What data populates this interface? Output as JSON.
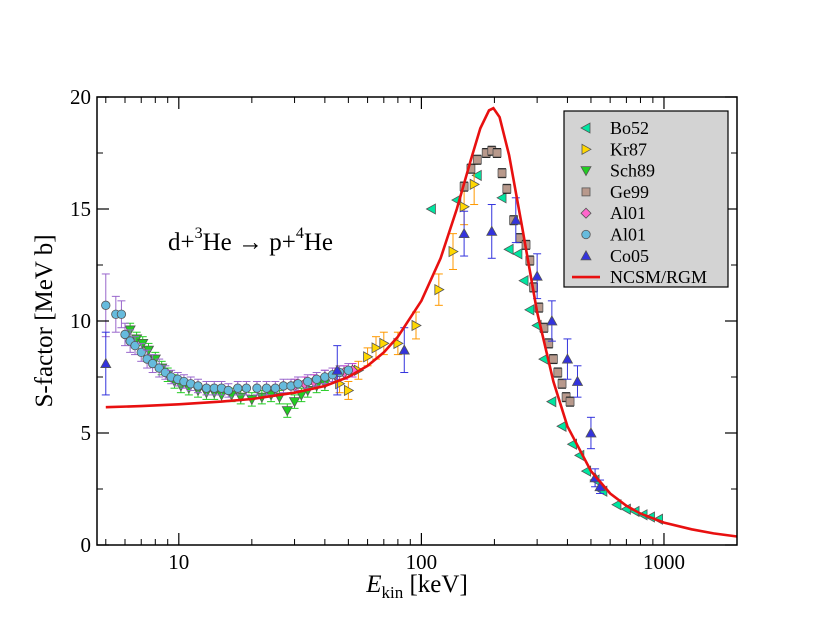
{
  "chart_data": {
    "type": "scatter",
    "title": "",
    "annotation": {
      "main": "d+",
      "sup1": "3",
      "mid": "He → p+",
      "sup2": "4",
      "end": "He"
    },
    "xlabel": {
      "italic": "E",
      "sub": "kin",
      "unit": " [keV]"
    },
    "ylabel": "S-factor [MeV b]",
    "xscale": "log",
    "xlim": [
      4.6,
      2000
    ],
    "ylim": [
      0,
      20
    ],
    "x_ticks": [
      {
        "value": 10,
        "label": "10"
      },
      {
        "value": 100,
        "label": "100"
      },
      {
        "value": 1000,
        "label": "1000"
      }
    ],
    "y_ticks": [
      {
        "value": 0,
        "label": "0"
      },
      {
        "value": 5,
        "label": "5"
      },
      {
        "value": 10,
        "label": "10"
      },
      {
        "value": 15,
        "label": "15"
      },
      {
        "value": 20,
        "label": "20"
      }
    ],
    "legend_position": "top-right",
    "series": [
      {
        "name": "Bo52",
        "marker": "triangle-left",
        "color": "#00e5a0",
        "errcolor": "#00e5a0",
        "points": [
          [
            110,
            15.0,
            0
          ],
          [
            140,
            15.4,
            0
          ],
          [
            170,
            16.5,
            0
          ],
          [
            215,
            15.5,
            0
          ],
          [
            230,
            13.2,
            0
          ],
          [
            250,
            13.0,
            0
          ],
          [
            265,
            11.8,
            0
          ],
          [
            280,
            10.5,
            0
          ],
          [
            300,
            9.8,
            0
          ],
          [
            320,
            8.3,
            0
          ],
          [
            345,
            6.4,
            0
          ],
          [
            380,
            5.3,
            0
          ],
          [
            420,
            4.5,
            0
          ],
          [
            450,
            4.0,
            0
          ],
          [
            480,
            3.3,
            0
          ],
          [
            520,
            2.9,
            0
          ],
          [
            560,
            2.4,
            0
          ],
          [
            640,
            1.8,
            0
          ],
          [
            700,
            1.6,
            0
          ],
          [
            760,
            1.5,
            0
          ],
          [
            820,
            1.35,
            0
          ],
          [
            880,
            1.25,
            0
          ],
          [
            950,
            1.15,
            0
          ]
        ]
      },
      {
        "name": "Kr87",
        "marker": "triangle-right",
        "color": "#ffd700",
        "errcolor": "#ff9900",
        "points": [
          [
            46,
            7.2,
            0.4
          ],
          [
            50,
            6.9,
            0.4
          ],
          [
            55,
            7.8,
            0.4
          ],
          [
            60,
            8.4,
            0.4
          ],
          [
            65,
            8.8,
            0.5
          ],
          [
            70,
            9.0,
            0.5
          ],
          [
            80,
            9.0,
            0.5
          ],
          [
            95,
            9.8,
            0.6
          ],
          [
            118,
            11.4,
            0.7
          ],
          [
            135,
            13.1,
            0.8
          ],
          [
            150,
            15.1,
            0.8
          ],
          [
            165,
            16.1,
            0.9
          ]
        ]
      },
      {
        "name": "Sch89",
        "marker": "triangle-down",
        "color": "#22cc22",
        "errcolor": "#22cc22",
        "points": [
          [
            6.3,
            9.6,
            0.3
          ],
          [
            6.7,
            9.2,
            0.3
          ],
          [
            7.1,
            9.0,
            0.3
          ],
          [
            7.5,
            8.7,
            0.3
          ],
          [
            8.0,
            8.3,
            0.3
          ],
          [
            8.5,
            7.9,
            0.3
          ],
          [
            9.0,
            7.6,
            0.3
          ],
          [
            9.6,
            7.3,
            0.3
          ],
          [
            10.2,
            7.1,
            0.3
          ],
          [
            11,
            7.0,
            0.3
          ],
          [
            12,
            6.9,
            0.3
          ],
          [
            13,
            6.8,
            0.3
          ],
          [
            14,
            6.8,
            0.3
          ],
          [
            15,
            6.7,
            0.3
          ],
          [
            16.5,
            6.7,
            0.3
          ],
          [
            18,
            6.6,
            0.3
          ],
          [
            20,
            6.5,
            0.3
          ],
          [
            22,
            6.6,
            0.3
          ],
          [
            24,
            6.7,
            0.3
          ],
          [
            26,
            6.6,
            0.3
          ],
          [
            28,
            6.0,
            0.3
          ],
          [
            30,
            6.4,
            0.3
          ],
          [
            32,
            6.7,
            0.3
          ],
          [
            34,
            6.9,
            0.3
          ],
          [
            37,
            7.1,
            0.3
          ],
          [
            40,
            7.2,
            0.3
          ]
        ]
      },
      {
        "name": "Ge99",
        "marker": "square",
        "color": "#b8998c",
        "errcolor": "#000000",
        "points": [
          [
            150,
            16.0,
            0.2
          ],
          [
            160,
            16.8,
            0.2
          ],
          [
            170,
            17.2,
            0.2
          ],
          [
            185,
            17.5,
            0.2
          ],
          [
            195,
            17.6,
            0.2
          ],
          [
            205,
            17.5,
            0.2
          ],
          [
            215,
            16.6,
            0.2
          ],
          [
            225,
            15.9,
            0.2
          ],
          [
            240,
            14.5,
            0.2
          ],
          [
            255,
            13.7,
            0.2
          ],
          [
            270,
            13.4,
            0.2
          ],
          [
            280,
            12.7,
            0.2
          ],
          [
            290,
            11.5,
            0.2
          ],
          [
            305,
            10.6,
            0.2
          ],
          [
            320,
            9.7,
            0.2
          ],
          [
            335,
            9.0,
            0.2
          ],
          [
            350,
            8.3,
            0.2
          ],
          [
            365,
            7.7,
            0.2
          ],
          [
            380,
            7.2,
            0.2
          ],
          [
            395,
            6.6,
            0.2
          ],
          [
            410,
            6.4,
            0.2
          ]
        ]
      },
      {
        "name": "Al01",
        "marker": "diamond",
        "color": "#ff66cc",
        "errcolor": "#cc33cc",
        "points": [
          [
            30,
            7.1,
            0.3
          ],
          [
            33,
            7.2,
            0.3
          ],
          [
            36,
            7.3,
            0.3
          ],
          [
            40,
            7.5,
            0.3
          ],
          [
            44,
            7.6,
            0.3
          ],
          [
            48,
            7.7,
            0.3
          ],
          [
            52,
            7.8,
            0.3
          ]
        ]
      },
      {
        "name": "Al01",
        "marker": "circle",
        "color": "#66bbdd",
        "errcolor": "#9966cc",
        "points": [
          [
            5.0,
            10.7,
            1.4
          ],
          [
            5.5,
            10.3,
            0.8
          ],
          [
            5.8,
            10.3,
            0.6
          ],
          [
            6.0,
            9.4,
            0.5
          ],
          [
            6.3,
            9.1,
            0.5
          ],
          [
            6.6,
            8.9,
            0.4
          ],
          [
            7.0,
            8.6,
            0.4
          ],
          [
            7.4,
            8.3,
            0.4
          ],
          [
            7.8,
            8.1,
            0.4
          ],
          [
            8.3,
            7.9,
            0.4
          ],
          [
            8.8,
            7.7,
            0.3
          ],
          [
            9.3,
            7.5,
            0.3
          ],
          [
            9.9,
            7.4,
            0.3
          ],
          [
            10.5,
            7.3,
            0.3
          ],
          [
            11.2,
            7.2,
            0.3
          ],
          [
            12,
            7.1,
            0.3
          ],
          [
            13,
            7.0,
            0.3
          ],
          [
            14,
            7.0,
            0.3
          ],
          [
            15,
            7.0,
            0.3
          ],
          [
            16,
            6.9,
            0.3
          ],
          [
            17.5,
            7.0,
            0.3
          ],
          [
            19,
            7.0,
            0.3
          ],
          [
            21,
            7.0,
            0.3
          ],
          [
            23,
            7.0,
            0.3
          ],
          [
            25,
            7.0,
            0.3
          ],
          [
            27,
            7.1,
            0.3
          ],
          [
            29,
            7.1,
            0.3
          ],
          [
            31,
            7.2,
            0.3
          ],
          [
            34,
            7.3,
            0.3
          ],
          [
            37,
            7.4,
            0.3
          ],
          [
            40,
            7.5,
            0.3
          ],
          [
            43,
            7.6,
            0.3
          ],
          [
            46,
            7.7,
            0.3
          ],
          [
            50,
            7.8,
            0.3
          ]
        ]
      },
      {
        "name": "Co05",
        "marker": "triangle-up",
        "color": "#3333dd",
        "errcolor": "#3333dd",
        "points": [
          [
            5.0,
            8.1,
            1.4
          ],
          [
            45,
            7.8,
            1.1
          ],
          [
            85,
            8.7,
            1.0
          ],
          [
            150,
            13.9,
            1.0
          ],
          [
            195,
            14.0,
            1.2
          ],
          [
            245,
            14.5,
            1.0
          ],
          [
            300,
            12.0,
            1.0
          ],
          [
            345,
            10.0,
            0.9
          ],
          [
            400,
            8.3,
            0.9
          ],
          [
            440,
            7.3,
            0.7
          ],
          [
            500,
            5.0,
            0.7
          ],
          [
            520,
            3.0,
            0.4
          ],
          [
            545,
            2.6,
            0.3
          ]
        ]
      }
    ],
    "curve": {
      "name": "NCSM/RGM",
      "color": "#e81010",
      "points": [
        [
          5,
          6.15
        ],
        [
          7,
          6.2
        ],
        [
          10,
          6.28
        ],
        [
          15,
          6.4
        ],
        [
          20,
          6.52
        ],
        [
          30,
          6.8
        ],
        [
          40,
          7.1
        ],
        [
          50,
          7.5
        ],
        [
          60,
          8.0
        ],
        [
          70,
          8.6
        ],
        [
          80,
          9.3
        ],
        [
          100,
          10.9
        ],
        [
          120,
          12.8
        ],
        [
          140,
          15.0
        ],
        [
          160,
          17.2
        ],
        [
          175,
          18.6
        ],
        [
          190,
          19.4
        ],
        [
          198,
          19.5
        ],
        [
          210,
          19.1
        ],
        [
          230,
          17.4
        ],
        [
          260,
          14.2
        ],
        [
          300,
          10.4
        ],
        [
          350,
          7.3
        ],
        [
          400,
          5.3
        ],
        [
          500,
          3.3
        ],
        [
          600,
          2.3
        ],
        [
          700,
          1.75
        ],
        [
          800,
          1.4
        ],
        [
          1000,
          1.0
        ],
        [
          1300,
          0.7
        ],
        [
          1600,
          0.52
        ],
        [
          2000,
          0.38
        ]
      ]
    }
  }
}
